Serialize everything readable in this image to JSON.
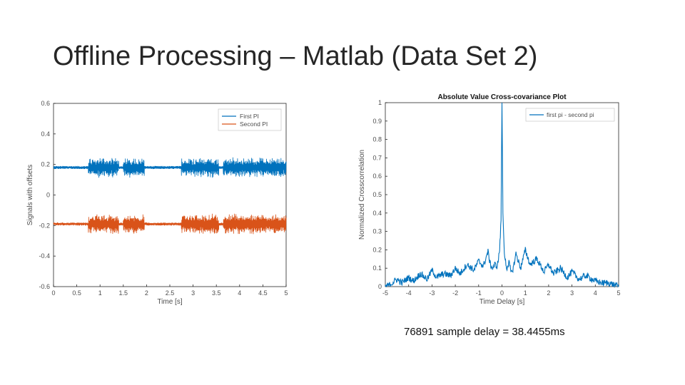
{
  "slide": {
    "title": "Offline Processing – Matlab (Data Set 2)",
    "caption": "76891 sample delay = 38.4455ms"
  },
  "colors": {
    "blue": "#0072bd",
    "orange": "#d95319",
    "axis": "#262626",
    "tick": "#4d4d4d"
  },
  "chart_data": [
    {
      "type": "line",
      "title": "",
      "xlabel": "Time [s]",
      "ylabel": "Signals with offsets",
      "xlim": [
        0,
        5
      ],
      "ylim": [
        -0.6,
        0.6
      ],
      "xticks": [
        0,
        0.5,
        1,
        1.5,
        2,
        2.5,
        3,
        3.5,
        4,
        4.5,
        5
      ],
      "yticks": [
        -0.6,
        -0.4,
        -0.2,
        0,
        0.2,
        0.4,
        0.6
      ],
      "grid": false,
      "legend_position": "top-right",
      "series": [
        {
          "name": "First PI",
          "color": "#0072bd",
          "offset": 0.18,
          "burst_ranges": [
            [
              0.75,
              1.4
            ],
            [
              1.5,
              1.95
            ],
            [
              2.75,
              3.55
            ],
            [
              3.65,
              5.0
            ]
          ],
          "burst_amplitude": 0.07,
          "quiet_amplitude": 0.01
        },
        {
          "name": "Second PI",
          "color": "#d95319",
          "offset": -0.19,
          "burst_ranges": [
            [
              0.75,
              1.4
            ],
            [
              1.5,
              1.95
            ],
            [
              2.75,
              3.55
            ],
            [
              3.65,
              5.0
            ]
          ],
          "burst_amplitude": 0.07,
          "quiet_amplitude": 0.01
        }
      ]
    },
    {
      "type": "line",
      "title": "Absolute Value Cross-covariance Plot",
      "xlabel": "Time Delay [s]",
      "ylabel": "Normalized Crosscorrelation",
      "xlim": [
        -5,
        5
      ],
      "ylim": [
        0,
        1
      ],
      "xticks": [
        -5,
        -4,
        -3,
        -2,
        -1,
        0,
        1,
        2,
        3,
        4,
        5
      ],
      "yticks": [
        0,
        0.1,
        0.2,
        0.3,
        0.4,
        0.5,
        0.6,
        0.7,
        0.8,
        0.9,
        1
      ],
      "grid": false,
      "legend_position": "top-right",
      "series": [
        {
          "name": "first pi - second pi",
          "color": "#0072bd",
          "x": [
            -5,
            -4.8,
            -4.5,
            -4.3,
            -4.0,
            -3.8,
            -3.5,
            -3.2,
            -3.0,
            -2.8,
            -2.5,
            -2.2,
            -2.0,
            -1.8,
            -1.5,
            -1.2,
            -1.0,
            -0.8,
            -0.6,
            -0.5,
            -0.4,
            -0.3,
            -0.2,
            -0.1,
            -0.04,
            0,
            0.04,
            0.1,
            0.2,
            0.3,
            0.4,
            0.5,
            0.6,
            0.8,
            1.0,
            1.2,
            1.5,
            1.8,
            2.0,
            2.2,
            2.5,
            2.8,
            3.0,
            3.3,
            3.6,
            4.0,
            4.3,
            4.6,
            5.0
          ],
          "y": [
            0.0,
            0.01,
            0.04,
            0.02,
            0.05,
            0.03,
            0.07,
            0.04,
            0.09,
            0.05,
            0.07,
            0.06,
            0.1,
            0.07,
            0.12,
            0.09,
            0.14,
            0.11,
            0.19,
            0.12,
            0.1,
            0.12,
            0.11,
            0.2,
            0.36,
            1.0,
            0.4,
            0.18,
            0.1,
            0.13,
            0.07,
            0.11,
            0.18,
            0.1,
            0.2,
            0.12,
            0.15,
            0.08,
            0.12,
            0.07,
            0.1,
            0.05,
            0.08,
            0.04,
            0.06,
            0.03,
            0.02,
            0.02,
            0.0
          ]
        }
      ]
    }
  ]
}
